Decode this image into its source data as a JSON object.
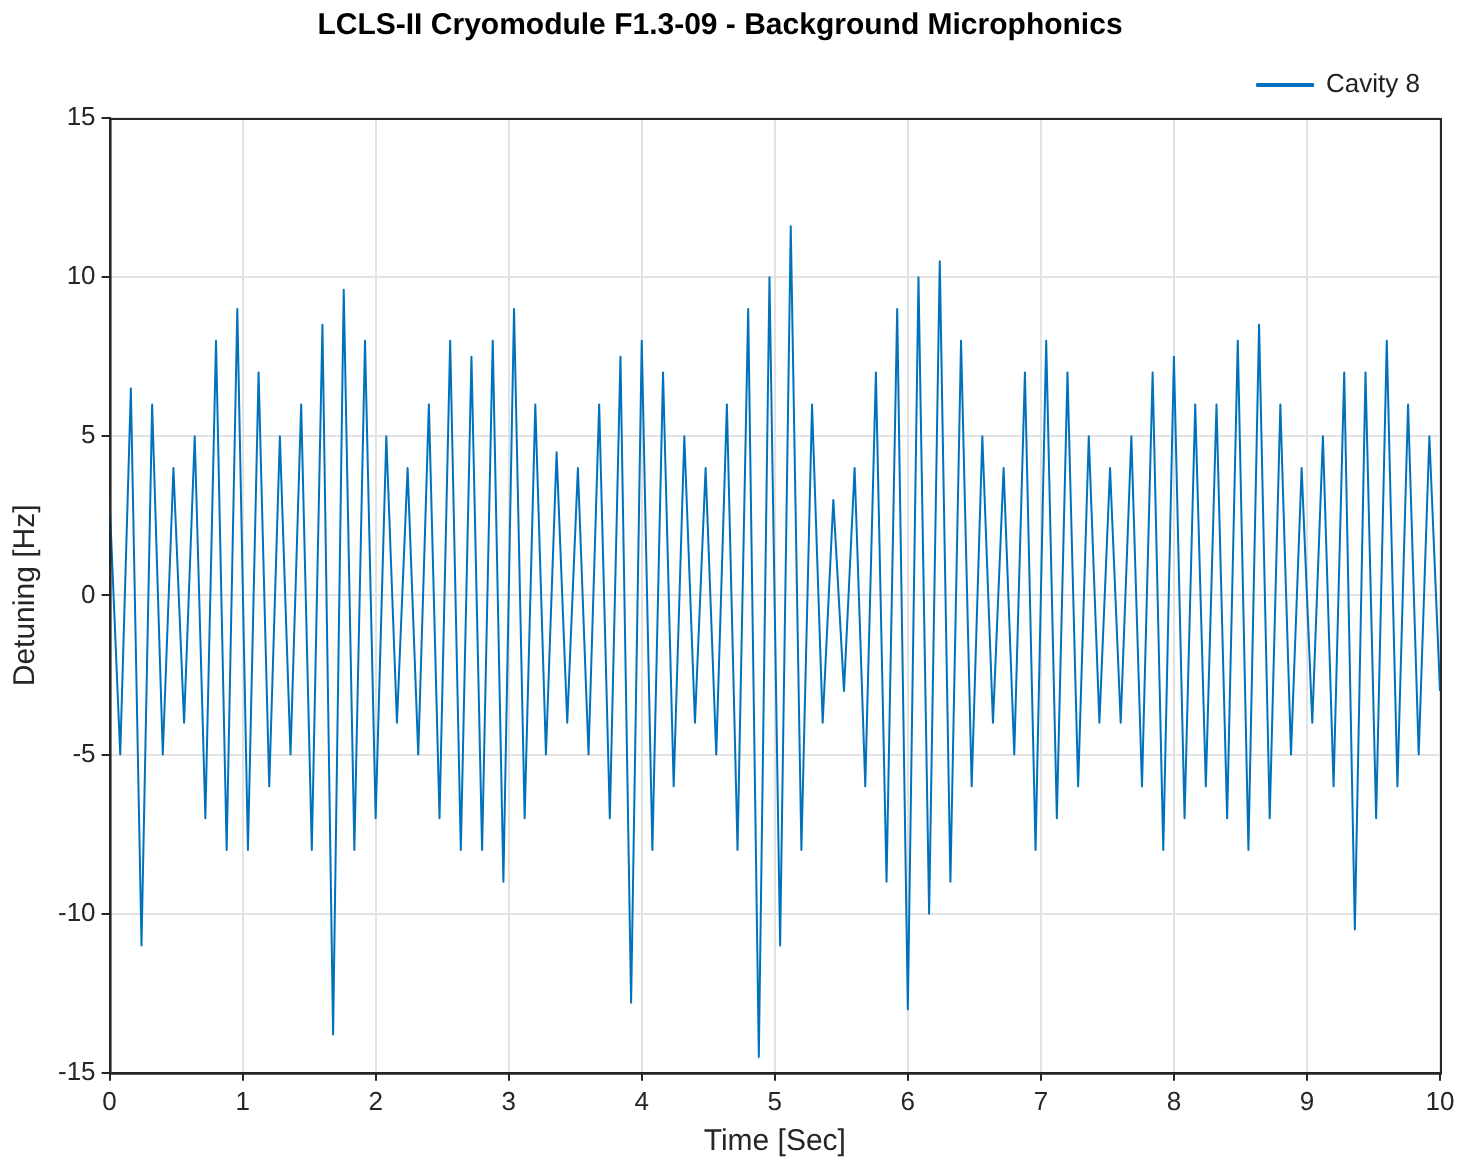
{
  "chart_data": {
    "type": "line",
    "title": "LCLS-II Cryomodule F1.3-09 - Background Microphonics",
    "xlabel": "Time [Sec]",
    "ylabel": "Detuning [Hz]",
    "xlim": [
      0,
      10
    ],
    "xticks": [
      0,
      1,
      2,
      3,
      4,
      5,
      6,
      7,
      8,
      9,
      10
    ],
    "ylim": [
      -15,
      15
    ],
    "yticks": [
      -15,
      -10,
      -5,
      0,
      5,
      10,
      15
    ],
    "grid": true,
    "legend": "top right",
    "marker": "none",
    "line_style": "solid",
    "series": [
      {
        "name": "Cavity 8",
        "color": "#0072bd",
        "x": [
          0,
          0.08,
          0.16,
          0.24,
          0.32,
          0.4,
          0.48,
          0.56,
          0.64,
          0.72,
          0.8,
          0.88,
          0.96,
          1.04,
          1.12,
          1.2,
          1.28,
          1.36,
          1.44,
          1.52,
          1.6,
          1.68,
          1.76,
          1.84,
          1.92,
          2,
          2.08,
          2.16,
          2.24,
          2.32,
          2.4,
          2.48,
          2.56,
          2.64,
          2.72,
          2.8,
          2.88,
          2.96,
          3.04,
          3.12,
          3.2,
          3.28,
          3.36,
          3.44,
          3.52,
          3.6,
          3.68,
          3.76,
          3.84,
          3.92,
          4,
          4.08,
          4.16,
          4.24,
          4.32,
          4.4,
          4.48,
          4.56,
          4.64,
          4.72,
          4.8,
          4.88,
          4.96,
          5.04,
          5.12,
          5.2,
          5.28,
          5.36,
          5.44,
          5.52,
          5.6,
          5.68,
          5.76,
          5.84,
          5.92,
          6,
          6.08,
          6.16,
          6.24,
          6.32,
          6.4,
          6.48,
          6.56,
          6.64,
          6.72,
          6.8,
          6.88,
          6.96,
          7.04,
          7.12,
          7.2,
          7.28,
          7.36,
          7.44,
          7.52,
          7.6,
          7.68,
          7.76,
          7.84,
          7.92,
          8,
          8.08,
          8.16,
          8.24,
          8.32,
          8.4,
          8.48,
          8.56,
          8.64,
          8.72,
          8.8,
          8.88,
          8.96,
          9.04,
          9.12,
          9.2,
          9.28,
          9.36,
          9.44,
          9.52,
          9.6,
          9.68,
          9.76,
          9.84,
          9.92,
          10
        ],
        "values": [
          3,
          -5,
          6.5,
          -11,
          6,
          -5,
          4,
          -4,
          5,
          -7,
          8,
          -8,
          9,
          -8,
          7,
          -6,
          5,
          -5,
          6,
          -8,
          8.5,
          -13.8,
          9.6,
          -8,
          8,
          -7,
          5,
          -4,
          4,
          -5,
          6,
          -7,
          8,
          -8,
          7.5,
          -8,
          8,
          -9,
          9,
          -7,
          6,
          -5,
          4.5,
          -4,
          4,
          -5,
          6,
          -7,
          7.5,
          -12.8,
          8,
          -8,
          7,
          -6,
          5,
          -4,
          4,
          -5,
          6,
          -8,
          9,
          -14.5,
          10,
          -11,
          11.6,
          -8,
          6,
          -4,
          3,
          -3,
          4,
          -6,
          7,
          -9,
          9,
          -13,
          10,
          -10,
          10.5,
          -9,
          8,
          -6,
          5,
          -4,
          4,
          -5,
          7,
          -8,
          8,
          -7,
          7,
          -6,
          5,
          -4,
          4,
          -4,
          5,
          -6,
          7,
          -8,
          7.5,
          -7,
          6,
          -6,
          6,
          -7,
          8,
          -8,
          8.5,
          -7,
          6,
          -5,
          4,
          -4,
          5,
          -6,
          7,
          -10.5,
          7,
          -7,
          8,
          -6,
          6,
          -5,
          5,
          -3
        ]
      }
    ]
  }
}
